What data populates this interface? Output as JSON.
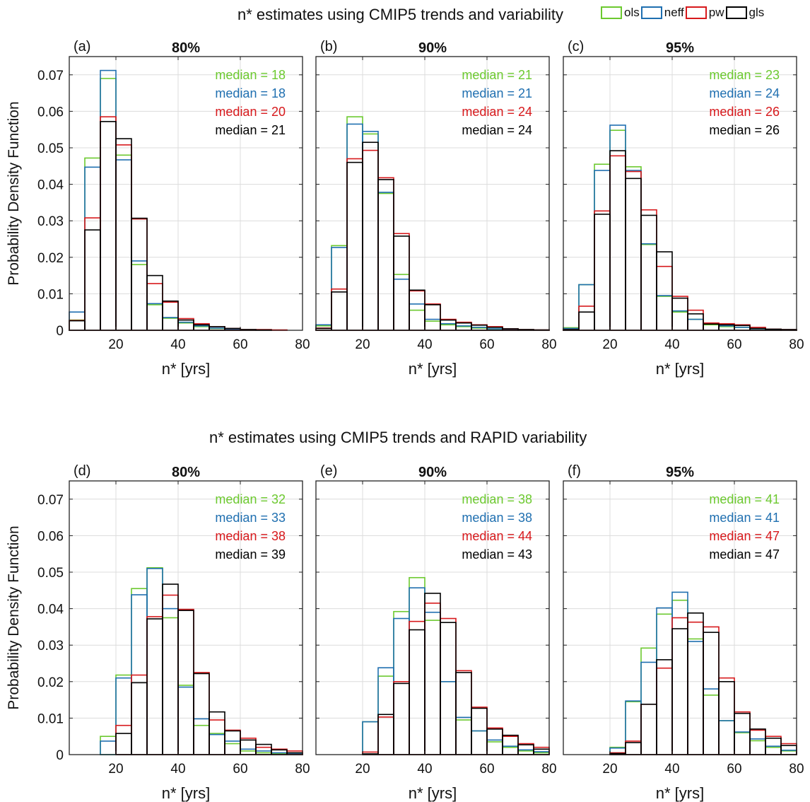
{
  "figure": {
    "top_title": "n* estimates using CMIP5 trends and variability",
    "bottom_title": "n* estimates using CMIP5 trends and RAPID variability",
    "legend": [
      {
        "label": "ols",
        "color": "#6cc92f"
      },
      {
        "label": "neff",
        "color": "#1f6fb0"
      },
      {
        "label": "pw",
        "color": "#d7191c"
      },
      {
        "label": "gls",
        "color": "#000000"
      }
    ],
    "ylabel": "Probability Density Function",
    "xlabel": "n* [yrs]",
    "xlim": [
      5,
      80
    ],
    "ylim": [
      0,
      0.075
    ],
    "xticks": [
      "20",
      "40",
      "60",
      "80"
    ],
    "yticks": [
      "0",
      "0.01",
      "0.02",
      "0.03",
      "0.04",
      "0.05",
      "0.06",
      "0.07"
    ]
  },
  "chart_data": [
    {
      "type": "bar",
      "panel": "(a)",
      "title": "80%",
      "bin_width": 5,
      "bin_starts": [
        5,
        10,
        15,
        20,
        25,
        30,
        35,
        40,
        45,
        50,
        55,
        60,
        65,
        70,
        75
      ],
      "xlabel": "n* [yrs]",
      "ylabel": "Probability Density Function",
      "medians": [
        "median = 18",
        "median = 18",
        "median = 20",
        "median = 21"
      ],
      "series": [
        {
          "name": "ols",
          "color": "#6cc92f",
          "values": [
            0.0028,
            0.0472,
            0.069,
            0.048,
            0.018,
            0.007,
            0.0033,
            0.002,
            0.001,
            0.0005,
            0.0002,
            0.0001,
            0.0001,
            0,
            0
          ]
        },
        {
          "name": "neff",
          "color": "#1f6fb0",
          "values": [
            0.005,
            0.0447,
            0.0712,
            0.0467,
            0.019,
            0.0073,
            0.0035,
            0.0022,
            0.0012,
            0.0006,
            0.0003,
            0.0001,
            0.0001,
            0,
            0
          ]
        },
        {
          "name": "pw",
          "color": "#d7191c",
          "values": [
            0.0027,
            0.0308,
            0.0585,
            0.0508,
            0.0305,
            0.0128,
            0.0077,
            0.0032,
            0.0018,
            0.001,
            0.0005,
            0.0002,
            0.0002,
            0.0001,
            0
          ]
        },
        {
          "name": "gls",
          "color": "#000000",
          "values": [
            0.0026,
            0.0275,
            0.0572,
            0.0525,
            0.0307,
            0.015,
            0.008,
            0.0028,
            0.0015,
            0.001,
            0.0005,
            0.0002,
            0.0001,
            0,
            0
          ]
        }
      ]
    },
    {
      "type": "bar",
      "panel": "(b)",
      "title": "90%",
      "bin_width": 5,
      "bin_starts": [
        5,
        10,
        15,
        20,
        25,
        30,
        35,
        40,
        45,
        50,
        55,
        60,
        65,
        70,
        75
      ],
      "xlabel": "n* [yrs]",
      "ylabel": "",
      "medians": [
        "median = 21",
        "median = 21",
        "median = 24",
        "median = 24"
      ],
      "series": [
        {
          "name": "ols",
          "color": "#6cc92f",
          "values": [
            0.0012,
            0.0232,
            0.0585,
            0.0538,
            0.0375,
            0.0153,
            0.0055,
            0.0025,
            0.0015,
            0.001,
            0.0006,
            0.0003,
            0.0002,
            0.0001,
            0
          ]
        },
        {
          "name": "neff",
          "color": "#1f6fb0",
          "values": [
            0.0015,
            0.0227,
            0.0565,
            0.0545,
            0.0378,
            0.014,
            0.0072,
            0.003,
            0.0018,
            0.0012,
            0.0008,
            0.0004,
            0.0002,
            0.0001,
            0
          ]
        },
        {
          "name": "pw",
          "color": "#d7191c",
          "values": [
            0.0006,
            0.0113,
            0.047,
            0.0493,
            0.0418,
            0.0265,
            0.0108,
            0.0072,
            0.003,
            0.0022,
            0.0015,
            0.001,
            0.0004,
            0.0002,
            0.0001
          ]
        },
        {
          "name": "gls",
          "color": "#000000",
          "values": [
            0.0005,
            0.0105,
            0.046,
            0.0515,
            0.0413,
            0.0258,
            0.011,
            0.007,
            0.0028,
            0.002,
            0.0014,
            0.0008,
            0.0004,
            0.0002,
            0.0001
          ]
        }
      ]
    },
    {
      "type": "bar",
      "panel": "(c)",
      "title": "95%",
      "bin_width": 5,
      "bin_starts": [
        5,
        10,
        15,
        20,
        25,
        30,
        35,
        40,
        45,
        50,
        55,
        60,
        65,
        70,
        75
      ],
      "xlabel": "n* [yrs]",
      "ylabel": "",
      "medians": [
        "median = 23",
        "median = 24",
        "median = 26",
        "median = 26"
      ],
      "series": [
        {
          "name": "ols",
          "color": "#6cc92f",
          "values": [
            0.0007,
            0.0125,
            0.0455,
            0.0548,
            0.0448,
            0.0235,
            0.0093,
            0.005,
            0.003,
            0.0015,
            0.001,
            0.0008,
            0.0004,
            0.0002,
            0.0001
          ]
        },
        {
          "name": "neff",
          "color": "#1f6fb0",
          "values": [
            0.0005,
            0.0125,
            0.0438,
            0.0562,
            0.0438,
            0.0237,
            0.0095,
            0.0053,
            0.003,
            0.0018,
            0.0012,
            0.0008,
            0.0004,
            0.0002,
            0.0001
          ]
        },
        {
          "name": "pw",
          "color": "#d7191c",
          "values": [
            0.0002,
            0.0066,
            0.0327,
            0.0478,
            0.0435,
            0.033,
            0.0175,
            0.0093,
            0.0055,
            0.002,
            0.0018,
            0.0015,
            0.0008,
            0.0003,
            0.0002
          ]
        },
        {
          "name": "gls",
          "color": "#000000",
          "values": [
            0.0002,
            0.005,
            0.0318,
            0.0492,
            0.0416,
            0.0315,
            0.0215,
            0.0088,
            0.0045,
            0.0017,
            0.0015,
            0.0013,
            0.0005,
            0.0003,
            0.0002
          ]
        }
      ]
    },
    {
      "type": "bar",
      "panel": "(d)",
      "title": "80%",
      "bin_width": 5,
      "bin_starts": [
        5,
        10,
        15,
        20,
        25,
        30,
        35,
        40,
        45,
        50,
        55,
        60,
        65,
        70,
        75
      ],
      "xlabel": "n* [yrs]",
      "ylabel": "Probability Density Function",
      "medians": [
        "median = 32",
        "median = 33",
        "median = 38",
        "median = 39"
      ],
      "series": [
        {
          "name": "ols",
          "color": "#6cc92f",
          "values": [
            0,
            0,
            0.005,
            0.0218,
            0.0455,
            0.0512,
            0.0375,
            0.019,
            0.008,
            0.0058,
            0.003,
            0.001,
            0.0005,
            0.0003,
            0.0002
          ]
        },
        {
          "name": "neff",
          "color": "#1f6fb0",
          "values": [
            0,
            0,
            0.0037,
            0.021,
            0.0438,
            0.051,
            0.04,
            0.0185,
            0.0098,
            0.0055,
            0.0037,
            0.0015,
            0.001,
            0.0005,
            0.0002
          ]
        },
        {
          "name": "pw",
          "color": "#d7191c",
          "values": [
            0,
            0,
            0,
            0.008,
            0.0218,
            0.0378,
            0.0437,
            0.0398,
            0.0225,
            0.0095,
            0.0067,
            0.0045,
            0.002,
            0.0015,
            0.001
          ]
        },
        {
          "name": "gls",
          "color": "#000000",
          "values": [
            0,
            0,
            0,
            0.0058,
            0.0197,
            0.0372,
            0.0467,
            0.0395,
            0.0222,
            0.0117,
            0.0065,
            0.004,
            0.0028,
            0.0013,
            0.0005
          ]
        }
      ]
    },
    {
      "type": "bar",
      "panel": "(e)",
      "title": "90%",
      "bin_width": 5,
      "bin_starts": [
        5,
        10,
        15,
        20,
        25,
        30,
        35,
        40,
        45,
        50,
        55,
        60,
        65,
        70,
        75
      ],
      "xlabel": "n* [yrs]",
      "ylabel": "",
      "medians": [
        "median = 38",
        "median = 38",
        "median = 44",
        "median = 43"
      ],
      "series": [
        {
          "name": "ols",
          "color": "#6cc92f",
          "values": [
            0,
            0,
            0,
            0.009,
            0.0215,
            0.0392,
            0.0485,
            0.0368,
            0.02,
            0.0095,
            0.0065,
            0.0035,
            0.002,
            0.001,
            0.0005
          ]
        },
        {
          "name": "neff",
          "color": "#1f6fb0",
          "values": [
            0,
            0,
            0,
            0.009,
            0.0238,
            0.0373,
            0.0457,
            0.039,
            0.02,
            0.0102,
            0.0065,
            0.004,
            0.0023,
            0.0013,
            0.0008
          ]
        },
        {
          "name": "pw",
          "color": "#d7191c",
          "values": [
            0,
            0,
            0,
            0.0007,
            0.0103,
            0.02,
            0.0365,
            0.0415,
            0.0373,
            0.023,
            0.013,
            0.0073,
            0.005,
            0.003,
            0.002
          ]
        },
        {
          "name": "gls",
          "color": "#000000",
          "values": [
            0,
            0,
            0,
            0.0002,
            0.011,
            0.0195,
            0.0342,
            0.0442,
            0.0362,
            0.0225,
            0.0127,
            0.007,
            0.0053,
            0.0027,
            0.0015
          ]
        }
      ]
    },
    {
      "type": "bar",
      "panel": "(f)",
      "title": "95%",
      "bin_width": 5,
      "bin_starts": [
        5,
        10,
        15,
        20,
        25,
        30,
        35,
        40,
        45,
        50,
        55,
        60,
        65,
        70,
        75
      ],
      "xlabel": "n* [yrs]",
      "ylabel": "",
      "medians": [
        "median = 41",
        "median = 41",
        "median = 47",
        "median = 47"
      ],
      "series": [
        {
          "name": "ols",
          "color": "#6cc92f",
          "values": [
            0,
            0,
            0,
            0.002,
            0.0145,
            0.0292,
            0.0385,
            0.0423,
            0.0317,
            0.0163,
            0.0093,
            0.006,
            0.0038,
            0.002,
            0.001
          ]
        },
        {
          "name": "neff",
          "color": "#1f6fb0",
          "values": [
            0,
            0,
            0,
            0.0018,
            0.0147,
            0.0253,
            0.0402,
            0.0445,
            0.031,
            0.018,
            0.0093,
            0.0062,
            0.0043,
            0.0023,
            0.0012
          ]
        },
        {
          "name": "pw",
          "color": "#d7191c",
          "values": [
            0,
            0,
            0,
            0.0005,
            0.0037,
            0.0138,
            0.0237,
            0.0375,
            0.0363,
            0.035,
            0.021,
            0.0117,
            0.0067,
            0.005,
            0.003
          ]
        },
        {
          "name": "gls",
          "color": "#000000",
          "values": [
            0,
            0,
            0,
            0.0003,
            0.0033,
            0.0138,
            0.026,
            0.0345,
            0.0388,
            0.0335,
            0.02,
            0.0113,
            0.007,
            0.0045,
            0.0025
          ]
        }
      ]
    }
  ]
}
